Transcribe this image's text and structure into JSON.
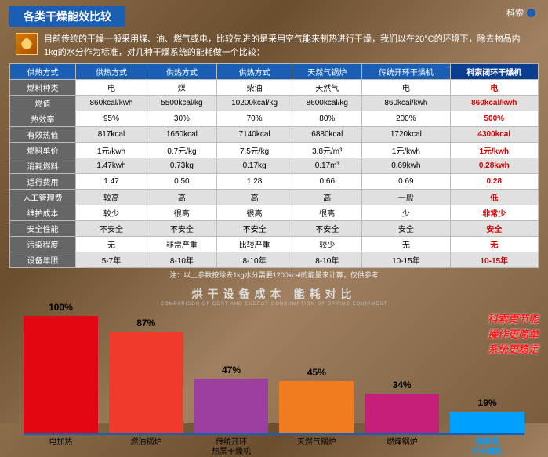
{
  "header": {
    "title": "各类干燥能效比较",
    "brand": "科索"
  },
  "intro": {
    "text": "目前传统的干燥一般采用煤、油、燃气或电，比较先进的是采用空气能来制热进行干燥，我们以在20°C的环境下，除去物品内1kg的水分作为标准，对几种干燥系统的能耗做一个比较："
  },
  "table": {
    "headers": [
      "供热方式",
      "供热方式",
      "供热方式",
      "供热方式",
      "天然气锅炉",
      "传统开环干燥机",
      "科索闭环干燥机"
    ],
    "rows": [
      {
        "h": "燃料种类",
        "c": [
          "电",
          "煤",
          "柴油",
          "天然气",
          "电",
          "电"
        ],
        "hl": true
      },
      {
        "h": "燃值",
        "c": [
          "860kcal/kwh",
          "5500kcal/kg",
          "10200kcal/kg",
          "8600kcal/kg",
          "860kcal/kwh",
          "860kcal/kwh"
        ],
        "hl": true
      },
      {
        "h": "热效率",
        "c": [
          "95%",
          "30%",
          "70%",
          "80%",
          "200%",
          "500%"
        ],
        "hl": true
      },
      {
        "h": "有效热值",
        "c": [
          "817kcal",
          "1650kcal",
          "7140kcal",
          "6880kcal",
          "1720kcal",
          "4300kcal"
        ],
        "hl": true
      },
      {
        "h": "燃料单价",
        "c": [
          "1元/kwh",
          "0.7元/kg",
          "7.5元/kg",
          "3.8元/m³",
          "1元/kwh",
          "1元/kwh"
        ],
        "hl": true
      },
      {
        "h": "消耗燃料",
        "c": [
          "1.47kwh",
          "0.73kg",
          "0.17kg",
          "0.17m³",
          "0.69kwh",
          "0.28kwh"
        ],
        "hl": true
      },
      {
        "h": "运行费用",
        "c": [
          "1.47",
          "0.50",
          "1.28",
          "0.66",
          "0.69",
          "0.28"
        ],
        "hl": true
      },
      {
        "h": "人工管理费",
        "c": [
          "较高",
          "高",
          "高",
          "高",
          "一般",
          "低"
        ],
        "hl": true
      },
      {
        "h": "维护成本",
        "c": [
          "较少",
          "很高",
          "很高",
          "很高",
          "少",
          "非常少"
        ],
        "hl": true
      },
      {
        "h": "安全性能",
        "c": [
          "不安全",
          "不安全",
          "不安全",
          "不安全",
          "安全",
          "安全"
        ],
        "hl": true
      },
      {
        "h": "污染程度",
        "c": [
          "无",
          "非常严重",
          "比较严重",
          "较少",
          "无",
          "无"
        ],
        "hl": true
      },
      {
        "h": "设备年限",
        "c": [
          "5-7年",
          "8-10年",
          "8-10年",
          "8-10年",
          "10-15年",
          "10-15年"
        ],
        "hl": true
      }
    ],
    "footnote": "注：以上参数按除去1kg水分需要1200kcal的能量来计算，仅供参考"
  },
  "chart": {
    "title": "烘干设备成本 能耗对比",
    "subtitle": "COMPARISON OF COST AND ENERGY CONSUMPTION OF DRYING EQUIPMENT",
    "max": 100,
    "bars": [
      {
        "label": "电加热",
        "value": 100,
        "pct": "100%",
        "color": "#e30613"
      },
      {
        "label": "燃油锅炉",
        "value": 87,
        "pct": "87%",
        "color": "#f03a2a"
      },
      {
        "label": "传统开环\n热泵干燥机",
        "value": 47,
        "pct": "47%",
        "color": "#9b3fa0"
      },
      {
        "label": "天然气锅炉",
        "value": 45,
        "pct": "45%",
        "color": "#f07c1f"
      },
      {
        "label": "燃煤锅炉",
        "value": 34,
        "pct": "34%",
        "color": "#c4207a"
      },
      {
        "label": "科索闭\n环干燥机",
        "value": 19,
        "pct": "19%",
        "color": "#00a0ff",
        "special": true
      }
    ],
    "side_note": [
      "科索更节能",
      "操作更简单",
      "系统更稳定"
    ]
  }
}
